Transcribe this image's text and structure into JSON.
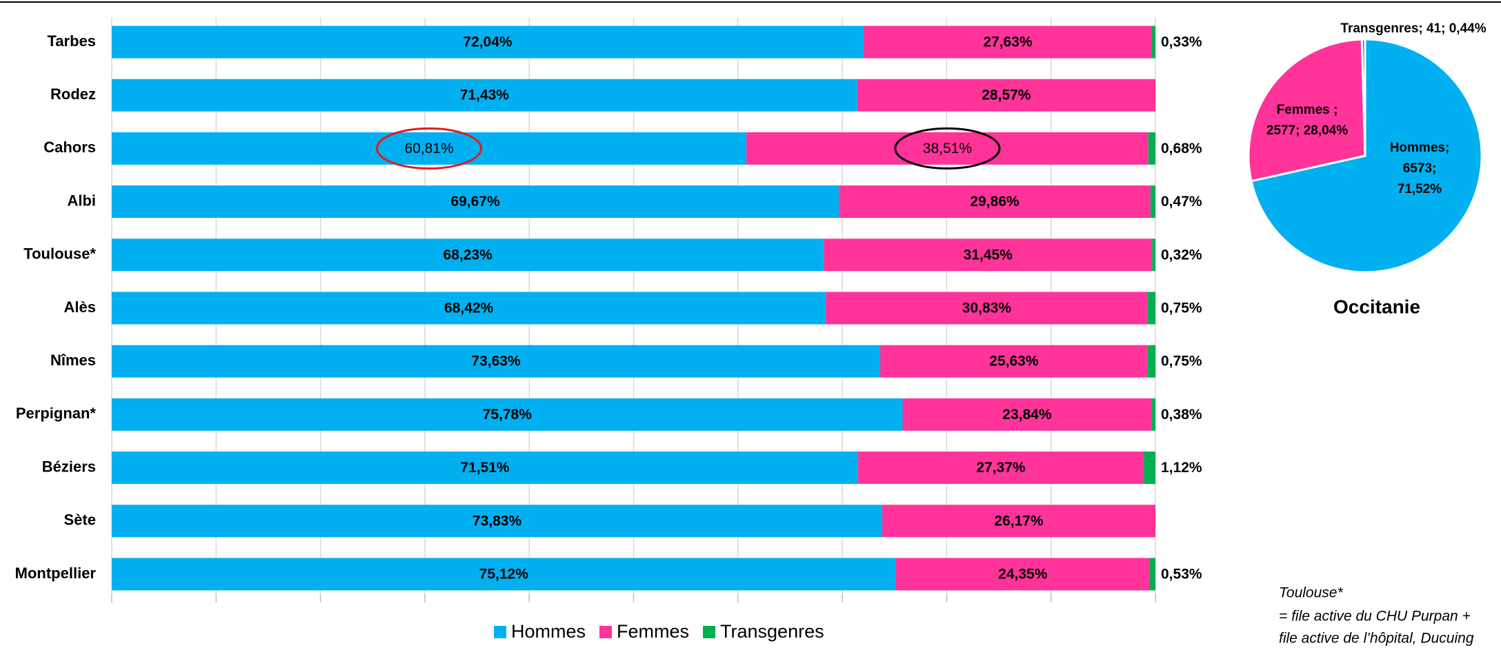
{
  "chart_data": [
    {
      "type": "stacked-barh",
      "categories": [
        "Tarbes",
        "Rodez",
        "Cahors",
        "Albi",
        "Toulouse*",
        "Alès",
        "Nîmes",
        "Perpignan*",
        "Béziers",
        "Sète",
        "Montpellier"
      ],
      "series": [
        {
          "name": "Hommes",
          "color": "#00b0f0",
          "values": [
            72.04,
            71.43,
            60.81,
            69.67,
            68.23,
            68.42,
            73.63,
            75.78,
            71.51,
            73.83,
            75.12
          ],
          "value_labels": [
            "72,04%",
            "71,43%",
            "60,81%",
            "69,67%",
            "68,23%",
            "68,42%",
            "73,63%",
            "75,78%",
            "71,51%",
            "73,83%",
            "75,12%"
          ]
        },
        {
          "name": "Femmes",
          "color": "#ff3399",
          "values": [
            27.63,
            28.57,
            38.51,
            29.86,
            31.45,
            30.83,
            25.63,
            23.84,
            27.37,
            26.17,
            24.35
          ],
          "value_labels": [
            "27,63%",
            "28,57%",
            "38,51%",
            "29,86%",
            "31,45%",
            "30,83%",
            "25,63%",
            "23,84%",
            "27,37%",
            "26,17%",
            "24,35%"
          ]
        },
        {
          "name": "Transgenres",
          "color": "#00b050",
          "values": [
            0.33,
            null,
            0.68,
            0.47,
            0.32,
            0.75,
            0.75,
            0.38,
            1.12,
            null,
            0.53
          ],
          "value_labels": [
            "0,33%",
            null,
            "0,68%",
            "0,47%",
            "0,32%",
            "0,75%",
            "0,75%",
            "0,38%",
            "1,12%",
            null,
            "0,53%"
          ]
        }
      ],
      "xlim": [
        0,
        100
      ],
      "xticks": [
        0,
        10,
        20,
        30,
        40,
        50,
        60,
        70,
        80,
        90,
        100
      ],
      "grid": true,
      "legend": "bottom"
    },
    {
      "type": "pie",
      "title": "Occitanie",
      "categories": [
        "Hommes",
        "Femmes",
        "Transgenres"
      ],
      "values": [
        6573,
        2577,
        41
      ],
      "value_labels": [
        "Hommes;\n6573;\n71,52%",
        "Femmes ;\n2577; 28,04%",
        "Transgenres; 41; 0,44%"
      ],
      "colors": [
        "#00b0f0",
        "#ff3399",
        "#00b050"
      ]
    }
  ],
  "notes": [
    "Toulouse*",
    "= file active du CHU Purpan +",
    "file active de l’hôpital, Ducuing"
  ]
}
